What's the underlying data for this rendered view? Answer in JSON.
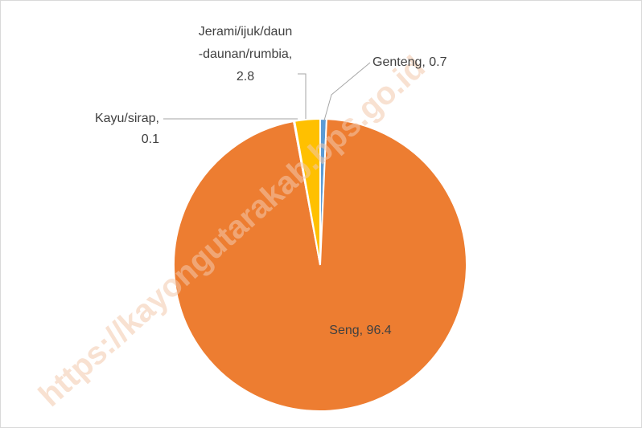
{
  "chart_data": {
    "type": "pie",
    "values": [
      0.7,
      96.4,
      0.1,
      2.8
    ],
    "colors": [
      "#5b9bd5",
      "#ed7d31",
      "#a5a5a5",
      "#ffc000"
    ],
    "value_labels": [
      [
        "Genteng, 0.7"
      ],
      [
        "Seng, 96.4"
      ],
      [
        "Kayu/sirap,",
        "0.1"
      ],
      [
        "Jerami/ijuk/daun",
        "-daunan/rumbia,",
        "2.8"
      ]
    ],
    "watermark": "https://kayongutarakab.bps.go.id"
  }
}
